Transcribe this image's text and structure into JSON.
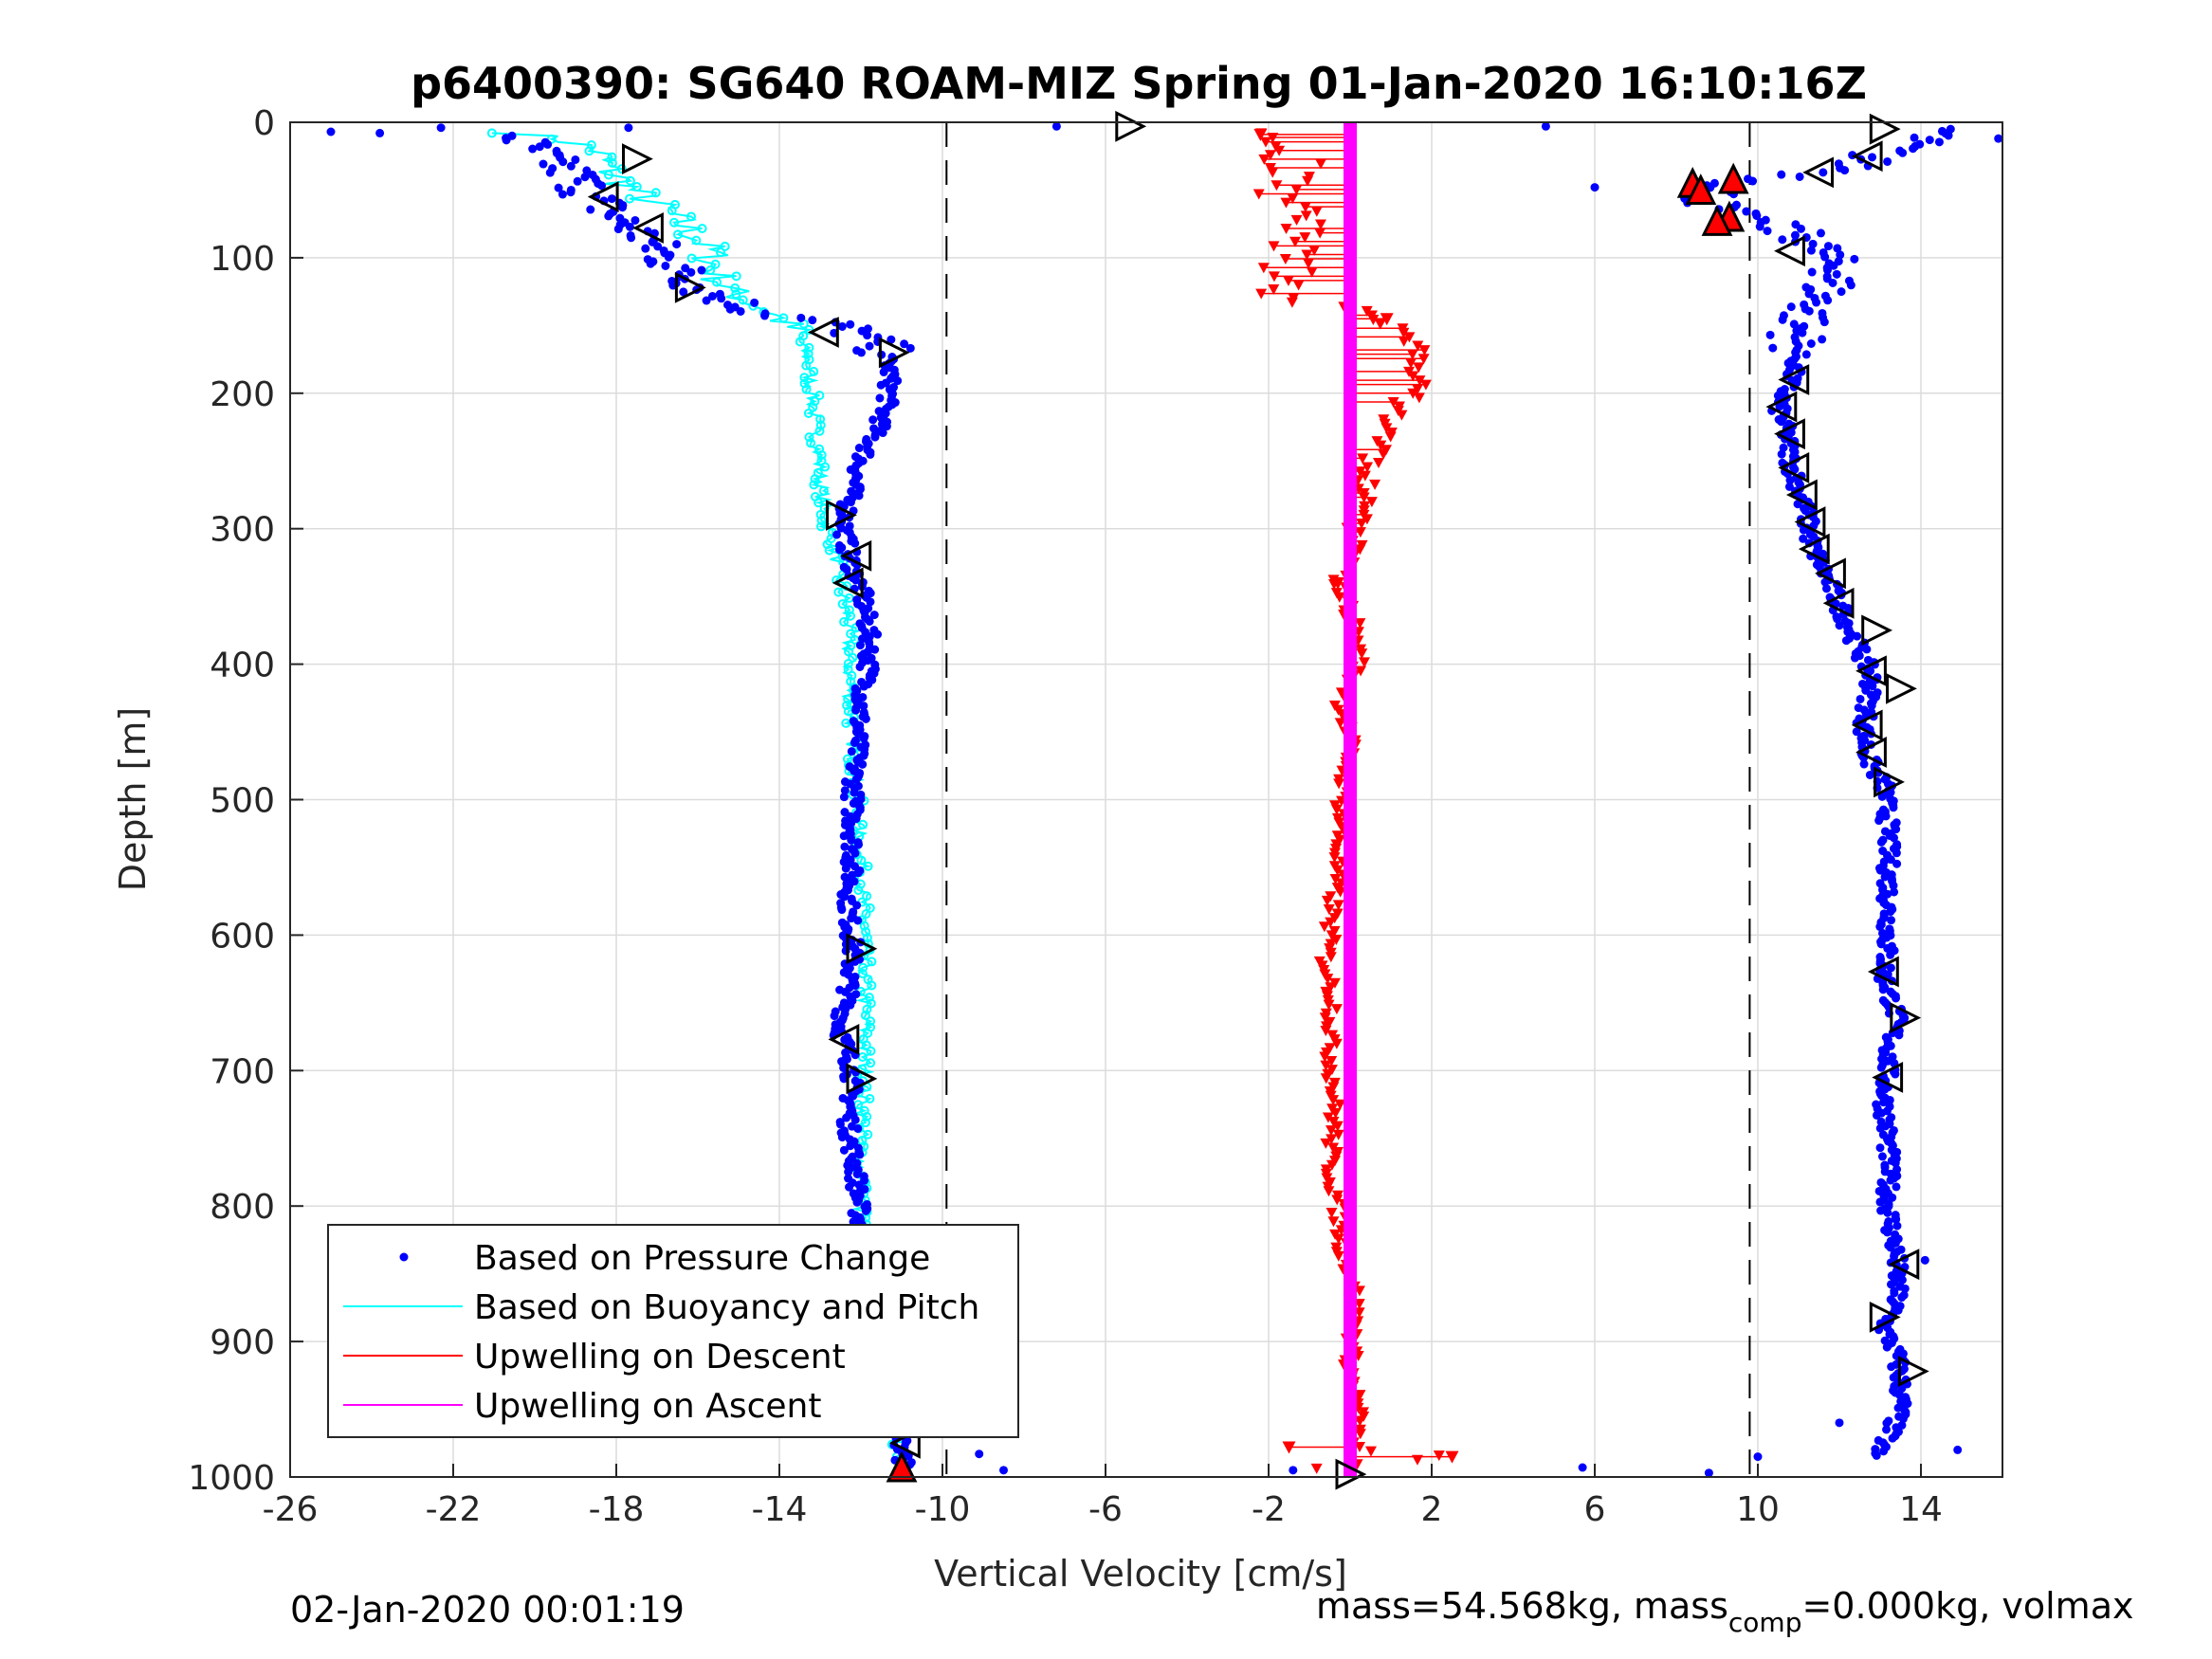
{
  "chart_data": {
    "type": "scatter",
    "title": "p6400390: SG640 ROAM-MIZ Spring 01-Jan-2020 16:10:16Z",
    "xlabel": "Vertical Velocity [cm/s]",
    "ylabel": "Depth [m]",
    "xlim": [
      -26,
      16
    ],
    "ylim": [
      0,
      1000
    ],
    "y_reversed": true,
    "grid": true,
    "xticks": [
      "-26",
      "-22",
      "-18",
      "-14",
      "-10",
      "-6",
      "-2",
      "2",
      "6",
      "10",
      "14"
    ],
    "yticks": [
      "0",
      "100",
      "200",
      "300",
      "400",
      "500",
      "600",
      "700",
      "800",
      "900",
      "1000"
    ],
    "reference_lines_x": [
      -9.9,
      9.8
    ],
    "legend_position": "bottom-left",
    "legend": [
      {
        "label": "Based on Pressure Change",
        "color": "#0000ff",
        "style": "dot"
      },
      {
        "label": "Based on Buoyancy and Pitch",
        "color": "#00ffff",
        "style": "line"
      },
      {
        "label": "Upwelling on Descent",
        "color": "#ff0000",
        "style": "line"
      },
      {
        "label": "Upwelling on Ascent",
        "color": "#ff00ff",
        "style": "line"
      }
    ],
    "series": [
      {
        "name": "Based on Pressure Change",
        "color": "#0000ff",
        "descent": [
          [
            -20.5,
            10
          ],
          [
            -19.8,
            25
          ],
          [
            -19,
            40
          ],
          [
            -18.6,
            55
          ],
          [
            -18,
            70
          ],
          [
            -17.3,
            85
          ],
          [
            -16.8,
            100
          ],
          [
            -16.2,
            115
          ],
          [
            -15.8,
            125
          ],
          [
            -14.5,
            140
          ],
          [
            -12.5,
            150
          ],
          [
            -11.5,
            165
          ],
          [
            -11.3,
            180
          ],
          [
            -11.3,
            200
          ],
          [
            -11.5,
            220
          ],
          [
            -12,
            250
          ],
          [
            -12.3,
            280
          ],
          [
            -12.4,
            300
          ],
          [
            -12.3,
            320
          ],
          [
            -12,
            345
          ],
          [
            -11.9,
            360
          ],
          [
            -11.8,
            380
          ],
          [
            -11.8,
            400
          ],
          [
            -12,
            430
          ],
          [
            -12.1,
            460
          ],
          [
            -12.2,
            500
          ],
          [
            -12.2,
            540
          ],
          [
            -12.3,
            580
          ],
          [
            -12.2,
            610
          ],
          [
            -12.3,
            640
          ],
          [
            -12.5,
            670
          ],
          [
            -12.2,
            700
          ],
          [
            -12.3,
            740
          ],
          [
            -12.1,
            780
          ],
          [
            -12,
            820
          ],
          [
            -11.9,
            860
          ],
          [
            -11.8,
            900
          ],
          [
            -11.6,
            930
          ],
          [
            -11.3,
            960
          ],
          [
            -10.9,
            980
          ],
          [
            -11,
            995
          ]
        ],
        "ascent": [
          [
            14.6,
            5
          ],
          [
            13.8,
            15
          ],
          [
            12.8,
            25
          ],
          [
            12.2,
            35
          ],
          [
            9.5,
            45
          ],
          [
            8.8,
            55
          ],
          [
            9.0,
            65
          ],
          [
            10.2,
            75
          ],
          [
            11.2,
            85
          ],
          [
            11.5,
            95
          ],
          [
            12.0,
            110
          ],
          [
            11.5,
            130
          ],
          [
            11.0,
            150
          ],
          [
            11.0,
            170
          ],
          [
            10.8,
            190
          ],
          [
            10.5,
            210
          ],
          [
            10.7,
            230
          ],
          [
            10.8,
            250
          ],
          [
            11.0,
            270
          ],
          [
            11.2,
            290
          ],
          [
            11.3,
            310
          ],
          [
            11.6,
            330
          ],
          [
            11.9,
            350
          ],
          [
            12.2,
            370
          ],
          [
            12.5,
            390
          ],
          [
            12.8,
            410
          ],
          [
            12.7,
            430
          ],
          [
            12.6,
            450
          ],
          [
            12.7,
            470
          ],
          [
            13.1,
            490
          ],
          [
            13.2,
            520
          ],
          [
            13.2,
            560
          ],
          [
            13.2,
            600
          ],
          [
            13.1,
            630
          ],
          [
            13.4,
            660
          ],
          [
            13.2,
            690
          ],
          [
            13.1,
            720
          ],
          [
            13.2,
            760
          ],
          [
            13.2,
            800
          ],
          [
            13.4,
            840
          ],
          [
            13.4,
            870
          ],
          [
            13.1,
            890
          ],
          [
            13.4,
            910
          ],
          [
            13.5,
            930
          ],
          [
            13.5,
            950
          ],
          [
            13.2,
            970
          ],
          [
            12.8,
            985
          ]
        ],
        "outliers": [
          [
            -25,
            7
          ],
          [
            -23.8,
            8
          ],
          [
            -22.3,
            4
          ],
          [
            -17.7,
            4
          ],
          [
            -7.2,
            3
          ],
          [
            -8.5,
            995
          ],
          [
            -9.1,
            983
          ],
          [
            -1.4,
            995
          ],
          [
            5.7,
            993
          ],
          [
            4.8,
            3
          ],
          [
            6.0,
            48
          ],
          [
            8.8,
            997
          ],
          [
            10,
            985
          ],
          [
            14.9,
            980
          ],
          [
            12,
            960
          ],
          [
            14.1,
            840
          ],
          [
            15.9,
            12
          ]
        ]
      },
      {
        "name": "Based on Buoyancy and Pitch",
        "color": "#00ffff",
        "points": [
          [
            -20.5,
            8
          ],
          [
            -19.4,
            12
          ],
          [
            -18.5,
            20
          ],
          [
            -18.2,
            35
          ],
          [
            -17.6,
            50
          ],
          [
            -16.8,
            65
          ],
          [
            -16.2,
            80
          ],
          [
            -15.7,
            95
          ],
          [
            -15.6,
            110
          ],
          [
            -15.2,
            125
          ],
          [
            -14.2,
            140
          ],
          [
            -13.6,
            155
          ],
          [
            -13.3,
            175
          ],
          [
            -13.2,
            200
          ],
          [
            -13.1,
            230
          ],
          [
            -13.0,
            260
          ],
          [
            -12.9,
            290
          ],
          [
            -12.6,
            320
          ],
          [
            -12.5,
            340
          ],
          [
            -12.3,
            370
          ],
          [
            -12.3,
            400
          ],
          [
            -12.2,
            450
          ],
          [
            -12.1,
            500
          ],
          [
            -12.0,
            550
          ],
          [
            -11.9,
            600
          ],
          [
            -11.9,
            650
          ],
          [
            -11.9,
            700
          ],
          [
            -12.0,
            750
          ],
          [
            -12.0,
            800
          ],
          [
            -12.0,
            850
          ],
          [
            -12.0,
            880
          ],
          [
            -11.8,
            910
          ],
          [
            -11.5,
            940
          ],
          [
            -11.1,
            970
          ],
          [
            -11.0,
            990
          ]
        ]
      },
      {
        "name": "Upwelling on Descent",
        "color": "#ff0000",
        "points": [
          [
            -2.2,
            10
          ],
          [
            -1.5,
            25
          ],
          [
            -1.0,
            40
          ],
          [
            -1.8,
            55
          ],
          [
            -1.2,
            70
          ],
          [
            -1.6,
            85
          ],
          [
            -1.5,
            100
          ],
          [
            -1.6,
            115
          ],
          [
            -1.8,
            125
          ],
          [
            0.8,
            145
          ],
          [
            1.5,
            165
          ],
          [
            1.8,
            180
          ],
          [
            1.5,
            200
          ],
          [
            1.0,
            220
          ],
          [
            0.7,
            240
          ],
          [
            0.4,
            260
          ],
          [
            0.3,
            280
          ],
          [
            0.2,
            300
          ],
          [
            0.1,
            320
          ],
          [
            -0.3,
            340
          ],
          [
            0.1,
            370
          ],
          [
            0.2,
            400
          ],
          [
            -0.2,
            430
          ],
          [
            0,
            460
          ],
          [
            -0.2,
            500
          ],
          [
            -0.3,
            540
          ],
          [
            -0.4,
            570
          ],
          [
            -0.5,
            600
          ],
          [
            -0.6,
            620
          ],
          [
            -0.4,
            650
          ],
          [
            -0.5,
            680
          ],
          [
            -0.4,
            710
          ],
          [
            -0.4,
            740
          ],
          [
            -0.5,
            770
          ],
          [
            -0.3,
            800
          ],
          [
            -0.2,
            830
          ],
          [
            0.1,
            860
          ],
          [
            0.1,
            890
          ],
          [
            0,
            920
          ],
          [
            0.2,
            950
          ],
          [
            0.1,
            980
          ],
          [
            2.5,
            985
          ],
          [
            -1.5,
            995
          ]
        ]
      },
      {
        "name": "Upwelling on Ascent",
        "color": "#ff00ff",
        "points": [
          [
            0,
            0
          ],
          [
            0,
            1000
          ]
        ]
      }
    ]
  },
  "footer": {
    "left": "02-Jan-2020 00:01:19",
    "right_a": "mass=54.568kg, mass",
    "right_sub": "comp",
    "right_b": "=0.000kg, volmax"
  }
}
